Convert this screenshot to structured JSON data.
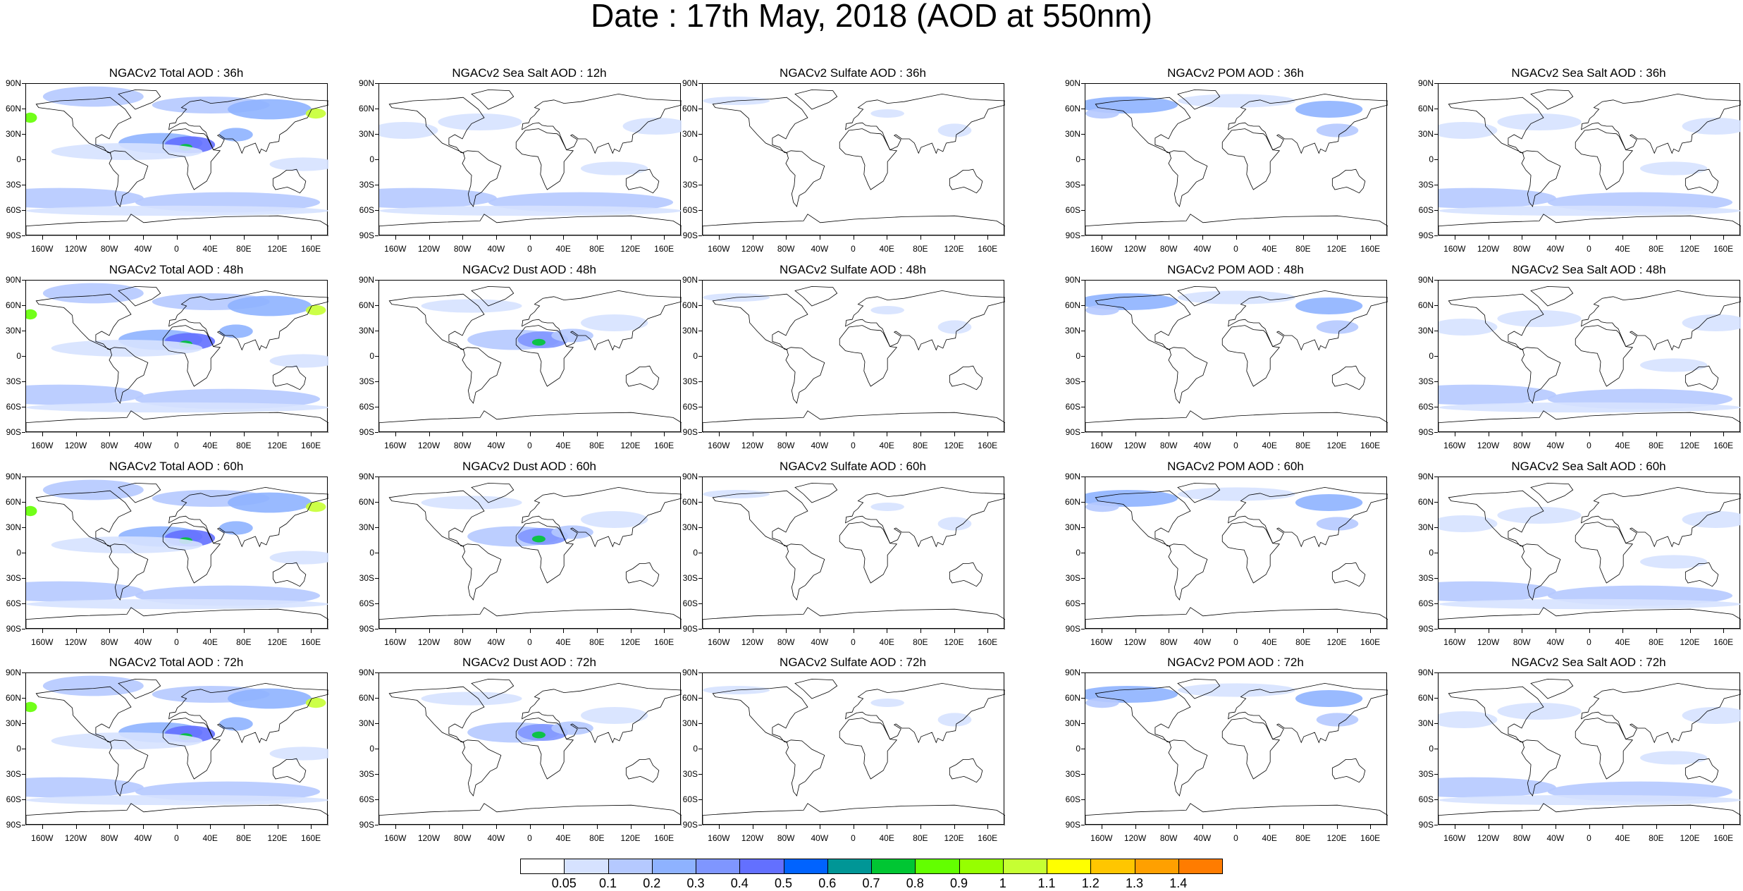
{
  "title": "Date : 17th May, 2018 (AOD at 550nm)",
  "panels": [
    [
      "NGACv2 Total AOD : 36h",
      "NGACv2 Sea Salt  AOD : 12h",
      "NGACv2 Sulfate AOD : 36h",
      "NGACv2 POM AOD : 36h",
      "NGACv2 Sea Salt  AOD : 36h"
    ],
    [
      "NGACv2 Total AOD : 48h",
      "NGACv2 Dust AOD : 48h",
      "NGACv2 Sulfate AOD : 48h",
      "NGACv2 POM AOD : 48h",
      "NGACv2 Sea Salt  AOD : 48h"
    ],
    [
      "NGACv2 Total AOD : 60h",
      "NGACv2 Dust AOD : 60h",
      "NGACv2 Sulfate AOD : 60h",
      "NGACv2 POM AOD : 60h",
      "NGACv2 Sea Salt  AOD : 60h"
    ],
    [
      "NGACv2 Total AOD : 72h",
      "NGACv2 Dust AOD : 72h",
      "NGACv2 Sulfate AOD : 72h",
      "NGACv2 POM AOD : 72h",
      "NGACv2 Sea Salt  AOD : 72h"
    ]
  ],
  "lat_labels": [
    "90N",
    "60N",
    "30N",
    "0",
    "30S",
    "60S",
    "90S"
  ],
  "lon_labels": [
    "160W",
    "120W",
    "80W",
    "40W",
    "0",
    "40E",
    "80E",
    "120E",
    "160E"
  ],
  "colorbar": {
    "labels": [
      "0.05",
      "0.1",
      "0.2",
      "0.3",
      "0.4",
      "0.5",
      "0.6",
      "0.7",
      "0.8",
      "0.9",
      "1",
      "1.1",
      "1.2",
      "1.3",
      "1.4"
    ],
    "colors": [
      "#ffffff",
      "#d6e2ff",
      "#b5c9ff",
      "#8eb2ff",
      "#7f96ff",
      "#6370ff",
      "#0063ff",
      "#009696",
      "#00c633",
      "#63ff00",
      "#96ff00",
      "#c6ff33",
      "#ffff00",
      "#ffc600",
      "#ffa000",
      "#ff7c00",
      "#ff1900"
    ]
  }
}
